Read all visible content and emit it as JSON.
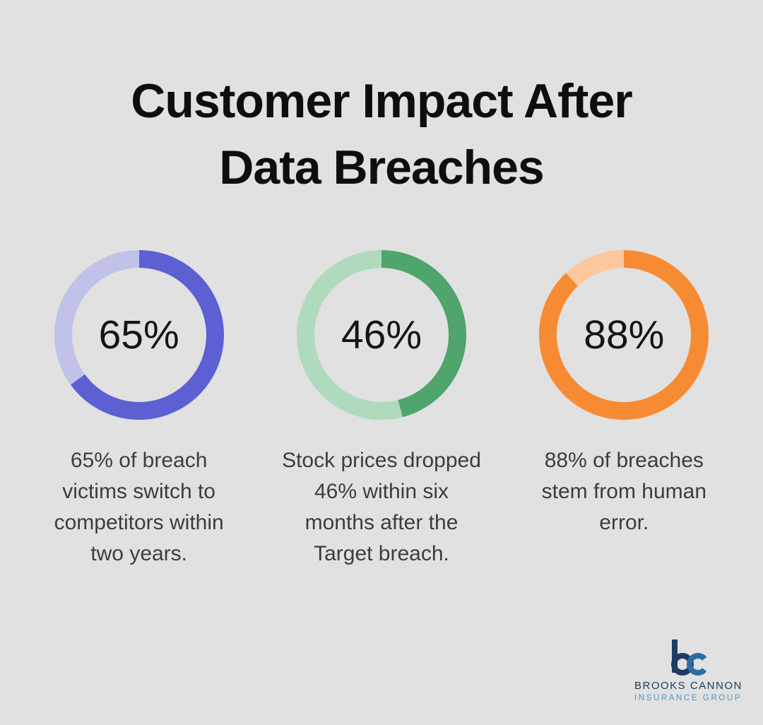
{
  "title": {
    "line1": "Customer Impact After",
    "line2": "Data Breaches"
  },
  "chart_data": [
    {
      "type": "donut",
      "label": "65%",
      "value": 65,
      "color": "#5c60d2",
      "track_color": "#c1c2ea",
      "start_angle_deg": 0,
      "direction": "clockwise",
      "caption": "65% of breach victims switch to competitors within two years.",
      "caption_lines": [
        "65% of breach",
        "victims switch to",
        "competitors within",
        "two years."
      ]
    },
    {
      "type": "donut",
      "label": "46%",
      "value": 46,
      "color": "#4fa56c",
      "track_color": "#afdabe",
      "start_angle_deg": 0,
      "direction": "clockwise",
      "caption": "Stock prices dropped 46% within six months after the Target breach.",
      "caption_lines": [
        "Stock prices dropped",
        "46% within six",
        "months after the",
        "Target breach."
      ]
    },
    {
      "type": "donut",
      "label": "88%",
      "value": 88,
      "color": "#f78b33",
      "track_color": "#fcc79c",
      "start_angle_deg": 0,
      "direction": "clockwise",
      "caption": "88% of breaches stem from human error.",
      "caption_lines": [
        "88% of breaches",
        "stem from human",
        "error."
      ]
    }
  ],
  "logo": {
    "monogram": "bc",
    "name": "BROOKS CANNON",
    "tagline": "INSURANCE GROUP",
    "monogram_b_color": "#1e3c5f",
    "monogram_c_color": "#2e6ca4",
    "name_color": "#1e3c5f",
    "tagline_color": "#4e96c4"
  },
  "colors": {
    "background": "#e0e1e0",
    "title_text": "#0e0e0e",
    "percent_text": "#141414",
    "caption_text": "#3d3d3d"
  }
}
